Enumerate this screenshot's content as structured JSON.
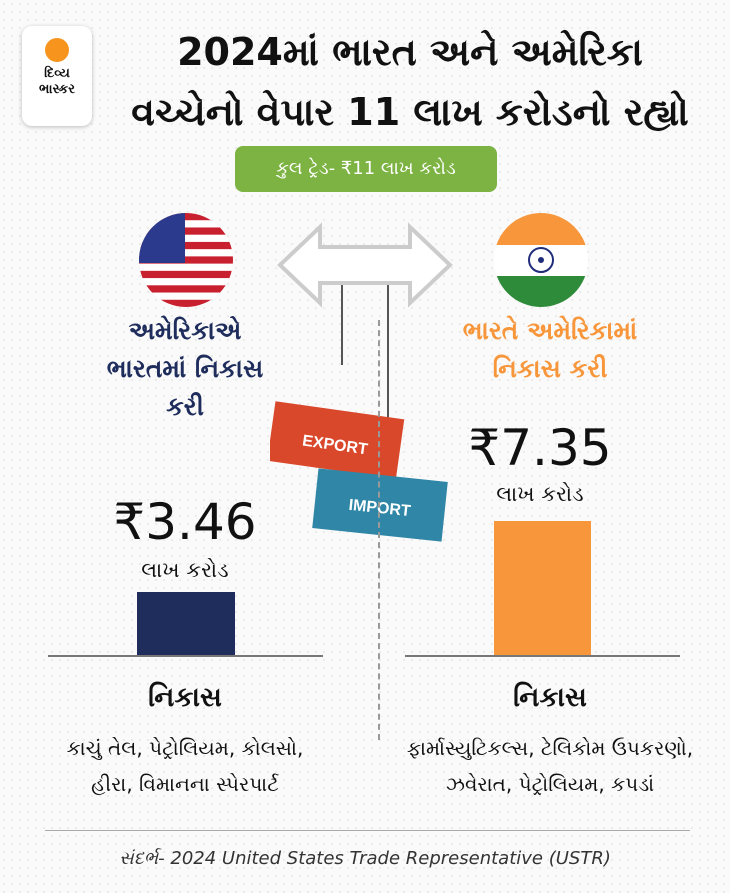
{
  "logo": {
    "line1": "દિવ્ય",
    "line2": "ભાસ્કર",
    "brand_color": "#f7941d"
  },
  "title": {
    "line1": "2024માં ભારત અને અમેરિકા",
    "line2": "વચ્ચેનો વેપાર 11 લાખ કરોડનો રહ્યો"
  },
  "total_pill": "કુલ ટ્રેડ- ₹11 લાખ કરોડ",
  "illustration": {
    "container1": "EXPORT",
    "container2": "IMPORT"
  },
  "chart_data": {
    "type": "bar",
    "unit": "લાખ કરોડ",
    "categories": [
      "અમેરિકાએ ભારતમાં નિકાસ કરી",
      "ભારતે અમેરિકામાં નિકાસ કરી"
    ],
    "values": [
      3.46,
      7.35
    ],
    "value_labels": [
      "₹3.46",
      "₹7.35"
    ],
    "colors": [
      "#1f2d5c",
      "#f7963a"
    ]
  },
  "left": {
    "heading_lines": [
      "અમેરિકાએ",
      "ભારતમાં નિકાસ",
      "કરી"
    ],
    "value": "₹3.46",
    "unit": "લાખ કરોડ",
    "sub": "નિકાસ",
    "items": [
      "કાચું તેલ, પેટ્રોલિયમ, કોલસો,",
      "હીરા, વિમાનના સ્પેરપાર્ટ"
    ],
    "heading_color": "#1f2d5c"
  },
  "right": {
    "heading_lines": [
      "ભારતે અમેરિકામાં",
      "નિકાસ કરી"
    ],
    "value": "₹7.35",
    "unit": "લાખ કરોડ",
    "sub": "નિકાસ",
    "items": [
      "ફાર્માસ્યુટિકલ્સ, ટેલિકોમ ઉપકરણો,",
      "ઝવેરાત, પેટ્રોલિયમ, કપડાં"
    ],
    "heading_color": "#f7963a"
  },
  "source": "સંદર્ભ- 2024 United States Trade Representative (USTR)"
}
